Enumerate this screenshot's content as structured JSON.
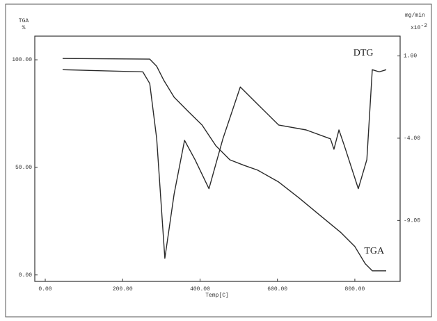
{
  "chart_data": {
    "type": "line",
    "ylabel": "TGA",
    "yunit": "%",
    "y2label": "mg/min",
    "y2unit": "x10",
    "y2exp": "-2",
    "xlabel": "Temp[C]",
    "xlim": [
      -27,
      917
    ],
    "ylim": [
      -3,
      111
    ],
    "y2lim": [
      -12.7,
      2.2
    ],
    "xticks": [
      {
        "value": 0,
        "label": "0.00"
      },
      {
        "value": 200,
        "label": "200.00"
      },
      {
        "value": 400,
        "label": "400.00"
      },
      {
        "value": 600,
        "label": "600.00"
      },
      {
        "value": 800,
        "label": "800.00"
      }
    ],
    "yticks": [
      {
        "value": 0,
        "label": "0.00"
      },
      {
        "value": 50,
        "label": "50.00"
      },
      {
        "value": 100,
        "label": "100.00"
      }
    ],
    "y2ticks": [
      {
        "value": -9,
        "label": "-9.00"
      },
      {
        "value": -4,
        "label": "-4.00"
      },
      {
        "value": 1,
        "label": "1.00"
      }
    ],
    "series": [
      {
        "name": "TGA",
        "color": "#2a2a2a",
        "x": [
          45,
          270,
          288,
          306,
          333,
          369,
          405,
          441,
          477,
          513,
          549,
          603,
          656,
          710,
          764,
          800,
          827,
          845,
          881
        ],
        "values": [
          100.6,
          100.3,
          97,
          90.6,
          82.6,
          76.1,
          69.7,
          60,
          53.5,
          51,
          48.7,
          43.2,
          35.8,
          27.7,
          19.7,
          13.2,
          5.2,
          1.9,
          1.9
        ]
      },
      {
        "name": "DTG",
        "color": "#2a2a2a",
        "axis": "y2",
        "x": [
          45,
          252,
          270,
          288,
          309,
          333,
          360,
          387,
          423,
          459,
          504,
          549,
          603,
          674,
          737,
          746,
          759,
          773,
          809,
          831,
          845,
          863,
          881
        ],
        "values": [
          0.16,
          0.03,
          -0.68,
          -4.04,
          -11.3,
          -7.4,
          -4.13,
          -5.3,
          -7.07,
          -4.04,
          -0.89,
          -1.94,
          -3.2,
          -3.5,
          -4.04,
          -4.67,
          -3.5,
          -4.46,
          -7.07,
          -5.3,
          0.16,
          0.03,
          0.16
        ]
      }
    ],
    "annotations": [
      {
        "text": "DTG",
        "x": 822,
        "y": 103
      },
      {
        "text": "TGA",
        "x": 850,
        "y": 11
      }
    ]
  }
}
